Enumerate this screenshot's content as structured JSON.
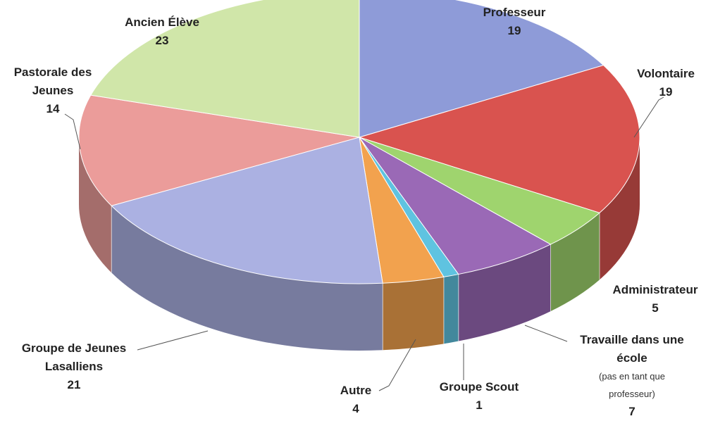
{
  "chart_data": {
    "type": "pie3d",
    "categories": [
      "Professeur",
      "Volontaire",
      "Administrateur",
      "Travaille dans une école",
      "Groupe Scout",
      "Autre",
      "Groupe de Jeunes Lasalliens",
      "Pastorale des Jeunes",
      "Ancien Élève"
    ],
    "values": [
      19,
      19,
      5,
      7,
      1,
      4,
      21,
      14,
      23
    ],
    "colors": [
      "#8e9bd8",
      "#d9534f",
      "#9fd46e",
      "#9a69b6",
      "#5fc3e0",
      "#f2a24e",
      "#abb1e2",
      "#eb9c9a",
      "#d0e6a9"
    ],
    "annotations": [
      {
        "category": 3,
        "text": "(pas en tant que professeur)"
      }
    ]
  }
}
